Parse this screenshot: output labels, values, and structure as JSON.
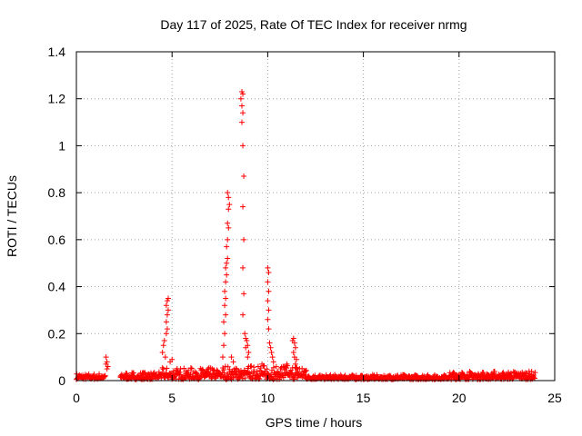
{
  "chart_data": {
    "type": "scatter",
    "title": "Day 117 of 2025, Rate Of TEC Index for receiver nrmg",
    "xlabel": "GPS time / hours",
    "ylabel": "ROTI / TECUs",
    "xlim": [
      0,
      25
    ],
    "ylim": [
      0,
      1.4
    ],
    "xticks": [
      0,
      5,
      10,
      15,
      20,
      25
    ],
    "yticks": [
      0,
      0.2,
      0.4,
      0.6,
      0.8,
      1,
      1.2,
      1.4
    ],
    "xtick_labels": [
      "0",
      "5",
      "10",
      "15",
      "20",
      "25"
    ],
    "ytick_labels": [
      "0",
      "0.2",
      "0.4",
      "0.6",
      "0.8",
      "1",
      "1.2",
      "1.4"
    ],
    "grid": true,
    "marker": "plus",
    "color": "#ff0000",
    "background_band": {
      "segments": [
        {
          "x0": 0.0,
          "x1": 1.5,
          "y_max": 0.025
        },
        {
          "x0": 2.3,
          "x1": 4.3,
          "y_max": 0.03
        },
        {
          "x0": 4.3,
          "x1": 7.5,
          "y_max": 0.05
        },
        {
          "x0": 7.5,
          "x1": 12.0,
          "y_max": 0.06
        },
        {
          "x0": 12.0,
          "x1": 19.5,
          "y_max": 0.02
        },
        {
          "x0": 19.5,
          "x1": 24.0,
          "y_max": 0.035
        }
      ]
    },
    "series": [
      {
        "values_xy": [
          [
            1.55,
            0.1
          ],
          [
            1.6,
            0.08
          ],
          [
            1.55,
            0.07
          ],
          [
            1.65,
            0.06
          ],
          [
            1.6,
            0.05
          ],
          [
            4.5,
            0.12
          ],
          [
            4.55,
            0.15
          ],
          [
            4.6,
            0.17
          ],
          [
            4.7,
            0.2
          ],
          [
            4.75,
            0.22
          ],
          [
            4.7,
            0.25
          ],
          [
            4.75,
            0.28
          ],
          [
            4.8,
            0.3
          ],
          [
            4.7,
            0.32
          ],
          [
            4.75,
            0.34
          ],
          [
            4.8,
            0.35
          ],
          [
            4.65,
            0.1
          ],
          [
            4.9,
            0.08
          ],
          [
            5.0,
            0.09
          ],
          [
            7.65,
            0.1
          ],
          [
            7.7,
            0.15
          ],
          [
            7.75,
            0.2
          ],
          [
            7.7,
            0.25
          ],
          [
            7.8,
            0.28
          ],
          [
            7.75,
            0.32
          ],
          [
            7.8,
            0.35
          ],
          [
            7.75,
            0.38
          ],
          [
            7.8,
            0.42
          ],
          [
            7.85,
            0.45
          ],
          [
            7.8,
            0.48
          ],
          [
            7.85,
            0.5
          ],
          [
            7.9,
            0.52
          ],
          [
            7.85,
            0.57
          ],
          [
            7.9,
            0.6
          ],
          [
            7.95,
            0.65
          ],
          [
            7.9,
            0.67
          ],
          [
            7.95,
            0.73
          ],
          [
            8.0,
            0.75
          ],
          [
            7.95,
            0.78
          ],
          [
            7.9,
            0.8
          ],
          [
            8.1,
            0.1
          ],
          [
            8.2,
            0.08
          ],
          [
            8.65,
            1.23
          ],
          [
            8.7,
            1.22
          ],
          [
            8.6,
            1.2
          ],
          [
            8.65,
            1.17
          ],
          [
            8.7,
            1.14
          ],
          [
            8.65,
            1.1
          ],
          [
            8.7,
            1.0
          ],
          [
            8.75,
            0.87
          ],
          [
            8.7,
            0.74
          ],
          [
            8.75,
            0.6
          ],
          [
            8.7,
            0.48
          ],
          [
            8.75,
            0.37
          ],
          [
            8.7,
            0.28
          ],
          [
            8.8,
            0.2
          ],
          [
            8.85,
            0.18
          ],
          [
            8.9,
            0.17
          ],
          [
            8.95,
            0.15
          ],
          [
            9.0,
            0.12
          ],
          [
            8.95,
            0.1
          ],
          [
            8.85,
            0.14
          ],
          [
            9.1,
            0.06
          ],
          [
            9.5,
            0.06
          ],
          [
            9.7,
            0.07
          ],
          [
            10.0,
            0.48
          ],
          [
            10.05,
            0.46
          ],
          [
            10.0,
            0.42
          ],
          [
            10.05,
            0.38
          ],
          [
            10.0,
            0.34
          ],
          [
            10.05,
            0.3
          ],
          [
            10.0,
            0.26
          ],
          [
            10.05,
            0.22
          ],
          [
            10.1,
            0.16
          ],
          [
            10.15,
            0.14
          ],
          [
            10.2,
            0.12
          ],
          [
            10.25,
            0.1
          ],
          [
            10.3,
            0.08
          ],
          [
            10.8,
            0.06
          ],
          [
            11.0,
            0.07
          ],
          [
            11.3,
            0.17
          ],
          [
            11.35,
            0.18
          ],
          [
            11.4,
            0.16
          ],
          [
            11.45,
            0.14
          ],
          [
            11.35,
            0.12
          ],
          [
            11.4,
            0.1
          ],
          [
            11.5,
            0.09
          ],
          [
            11.45,
            0.07
          ]
        ]
      }
    ]
  }
}
